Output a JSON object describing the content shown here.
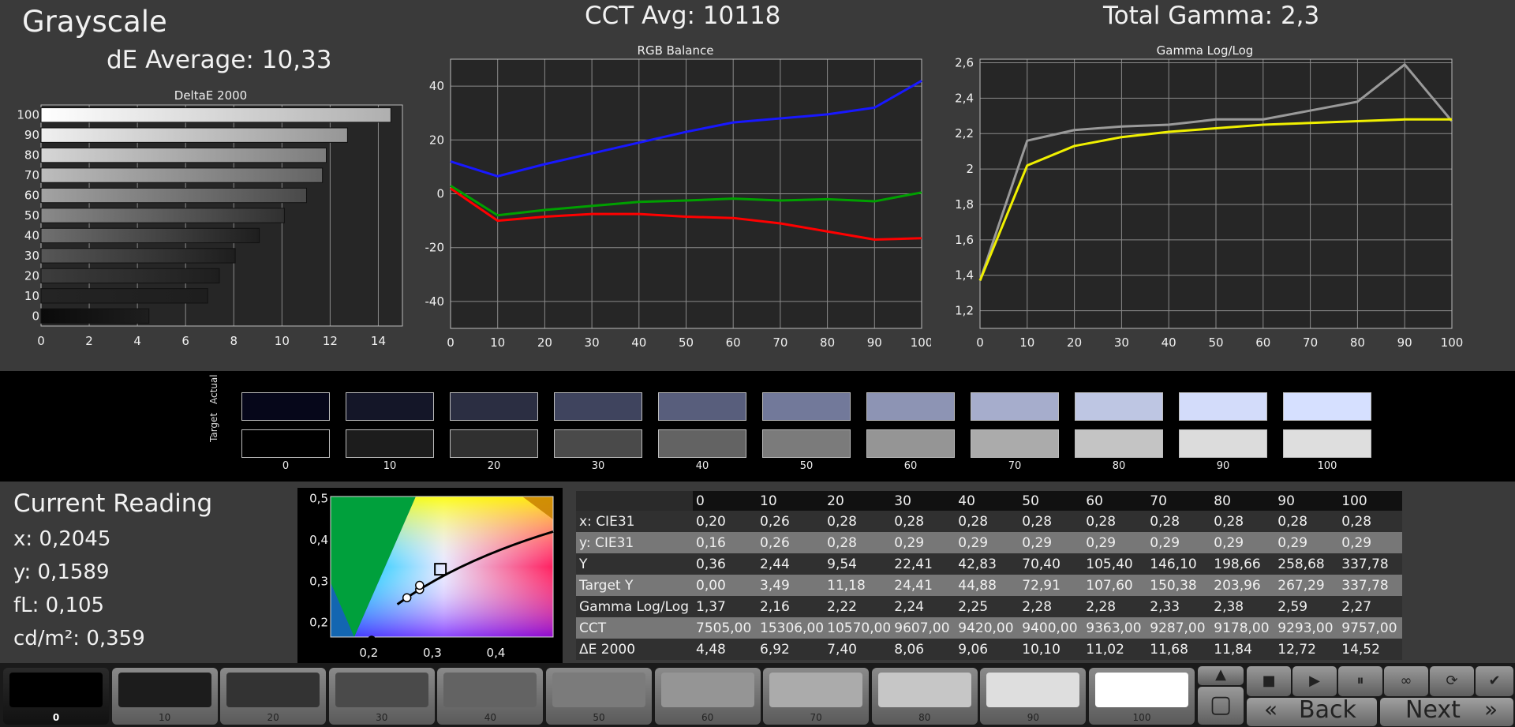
{
  "header": {
    "title": "Grayscale",
    "de_average": "dE Average: 10,33",
    "cct_avg": "CCT Avg: 10118",
    "total_gamma": "Total Gamma: 2,3"
  },
  "colors": {
    "background": "#3a3a3a",
    "plot_bg": "#262626",
    "grid": "#8a8a8a",
    "red": "#ff0000",
    "green": "#00a000",
    "blue": "#1818ff",
    "gamma_measured": "#9a9a9a",
    "gamma_target": "#f0f000"
  },
  "chart_data": [
    {
      "type": "bar",
      "title": "DeltaE 2000",
      "orientation": "horizontal",
      "categories": [
        "0",
        "10",
        "20",
        "30",
        "40",
        "50",
        "60",
        "70",
        "80",
        "90",
        "100"
      ],
      "values": [
        4.48,
        6.92,
        7.4,
        8.06,
        9.06,
        10.1,
        11.02,
        11.68,
        11.84,
        12.72,
        14.52
      ],
      "xlim": [
        0,
        15
      ],
      "xticks": [
        "0",
        "2",
        "4",
        "6",
        "8",
        "10",
        "12",
        "14"
      ],
      "grid": true
    },
    {
      "type": "line",
      "title": "RGB Balance",
      "x": [
        0,
        10,
        20,
        30,
        40,
        50,
        60,
        70,
        80,
        90,
        100
      ],
      "xticks": [
        "0",
        "10",
        "20",
        "30",
        "40",
        "50",
        "60",
        "70",
        "80",
        "90",
        "100"
      ],
      "yticks": [
        "40",
        "20",
        "0",
        "-20",
        "-40"
      ],
      "ylim": [
        -50,
        50
      ],
      "series": [
        {
          "color": "#1818ff",
          "values": [
            12,
            6.5,
            11,
            15,
            19,
            23,
            26.5,
            28,
            29.5,
            32,
            42
          ]
        },
        {
          "color": "#00a000",
          "values": [
            3,
            -8,
            -6,
            -4.5,
            -3,
            -2.5,
            -1.8,
            -2.5,
            -2,
            -2.8,
            0.5
          ]
        },
        {
          "color": "#ff0000",
          "values": [
            2,
            -10,
            -8.5,
            -7.5,
            -7.5,
            -8.5,
            -9,
            -11,
            -14,
            -17,
            -16.5
          ]
        }
      ],
      "grid": true
    },
    {
      "type": "line",
      "title": "Gamma Log/Log",
      "x": [
        0,
        10,
        20,
        30,
        40,
        50,
        60,
        70,
        80,
        90,
        100
      ],
      "xticks": [
        "0",
        "10",
        "20",
        "30",
        "40",
        "50",
        "60",
        "70",
        "80",
        "90",
        "100"
      ],
      "yticks": [
        "2,6",
        "2,4",
        "2,2",
        "2",
        "1,8",
        "1,6",
        "1,4",
        "1,2"
      ],
      "ylim": [
        1.1,
        2.62
      ],
      "series": [
        {
          "color": "#9a9a9a",
          "values": [
            1.37,
            2.16,
            2.22,
            2.24,
            2.25,
            2.28,
            2.28,
            2.33,
            2.38,
            2.59,
            2.27
          ]
        },
        {
          "color": "#f0f000",
          "values": [
            1.37,
            2.02,
            2.13,
            2.18,
            2.21,
            2.23,
            2.25,
            2.26,
            2.27,
            2.28,
            2.28
          ]
        }
      ],
      "grid": true
    },
    {
      "type": "scatter",
      "title": "",
      "xticks": [
        "0,2",
        "0,3",
        "0,4"
      ],
      "yticks": [
        "0,5",
        "0,4",
        "0,3",
        "0,2"
      ],
      "xlim": [
        0.14,
        0.49
      ],
      "ylim": [
        0.165,
        0.505
      ],
      "points": [
        {
          "x": 0.2045,
          "y": 0.1589,
          "kind": "current"
        },
        {
          "x": 0.26,
          "y": 0.26,
          "kind": "reading"
        },
        {
          "x": 0.28,
          "y": 0.28,
          "kind": "reading"
        },
        {
          "x": 0.28,
          "y": 0.29,
          "kind": "reading"
        },
        {
          "x": 0.3127,
          "y": 0.329,
          "kind": "target"
        }
      ]
    }
  ],
  "swatches": {
    "actual_label": "Actual",
    "target_label": "Target",
    "labels": [
      "0",
      "10",
      "20",
      "30",
      "40",
      "50",
      "60",
      "70",
      "80",
      "90",
      "100"
    ],
    "actual_colors": [
      "#06071a",
      "#141628",
      "#2b2e42",
      "#3f445e",
      "#585e7c",
      "#72799a",
      "#8d94b4",
      "#a6adcc",
      "#bec6e3",
      "#d3dcfa",
      "#d6e0ff"
    ],
    "target_colors": [
      "#000000",
      "#1c1c1c",
      "#303030",
      "#4a4a4a",
      "#636363",
      "#7b7b7b",
      "#959595",
      "#ababab",
      "#c4c4c4",
      "#dcdcdc",
      "#dedede"
    ]
  },
  "current_reading": {
    "title": "Current Reading",
    "x": "x: 0,2045",
    "y": "y: 0,1589",
    "fl": "fL: 0,105",
    "cdm2": "cd/m²: 0,359"
  },
  "table": {
    "headers": [
      "0",
      "10",
      "20",
      "30",
      "40",
      "50",
      "60",
      "70",
      "80",
      "90",
      "100"
    ],
    "rows": [
      {
        "label": "x: CIE31",
        "values": [
          "0,20",
          "0,26",
          "0,28",
          "0,28",
          "0,28",
          "0,28",
          "0,28",
          "0,28",
          "0,28",
          "0,28",
          "0,28"
        ]
      },
      {
        "label": "y: CIE31",
        "values": [
          "0,16",
          "0,26",
          "0,28",
          "0,29",
          "0,29",
          "0,29",
          "0,29",
          "0,29",
          "0,29",
          "0,29",
          "0,29"
        ]
      },
      {
        "label": "Y",
        "values": [
          "0,36",
          "2,44",
          "9,54",
          "22,41",
          "42,83",
          "70,40",
          "105,40",
          "146,10",
          "198,66",
          "258,68",
          "337,78"
        ]
      },
      {
        "label": "Target Y",
        "values": [
          "0,00",
          "3,49",
          "11,18",
          "24,41",
          "44,88",
          "72,91",
          "107,60",
          "150,38",
          "203,96",
          "267,29",
          "337,78"
        ]
      },
      {
        "label": "Gamma Log/Log",
        "values": [
          "1,37",
          "2,16",
          "2,22",
          "2,24",
          "2,25",
          "2,28",
          "2,28",
          "2,33",
          "2,38",
          "2,59",
          "2,27"
        ]
      },
      {
        "label": "CCT",
        "values": [
          "7505,00",
          "15306,00",
          "10570,00",
          "9607,00",
          "9420,00",
          "9400,00",
          "9363,00",
          "9287,00",
          "9178,00",
          "9293,00",
          "9757,00"
        ]
      },
      {
        "label": "ΔE 2000",
        "values": [
          "4,48",
          "6,92",
          "7,40",
          "8,06",
          "9,06",
          "10,10",
          "11,02",
          "11,68",
          "11,84",
          "12,72",
          "14,52"
        ]
      }
    ]
  },
  "toolbar": {
    "patches": [
      {
        "label": "0",
        "color": "#000000"
      },
      {
        "label": "10",
        "color": "#1c1c1c"
      },
      {
        "label": "20",
        "color": "#333333"
      },
      {
        "label": "30",
        "color": "#4a4a4a"
      },
      {
        "label": "40",
        "color": "#636363"
      },
      {
        "label": "50",
        "color": "#7b7b7b"
      },
      {
        "label": "60",
        "color": "#959595"
      },
      {
        "label": "70",
        "color": "#ababab"
      },
      {
        "label": "80",
        "color": "#c6c6c6"
      },
      {
        "label": "90",
        "color": "#dedede"
      },
      {
        "label": "100",
        "color": "#ffffff"
      }
    ],
    "back_label": "Back",
    "next_label": "Next",
    "icons": [
      "stop-icon",
      "play-icon",
      "pause-icon",
      "loop-icon",
      "refresh-icon",
      "check-icon",
      "up-arrow-icon",
      "patch-square-icon"
    ]
  }
}
